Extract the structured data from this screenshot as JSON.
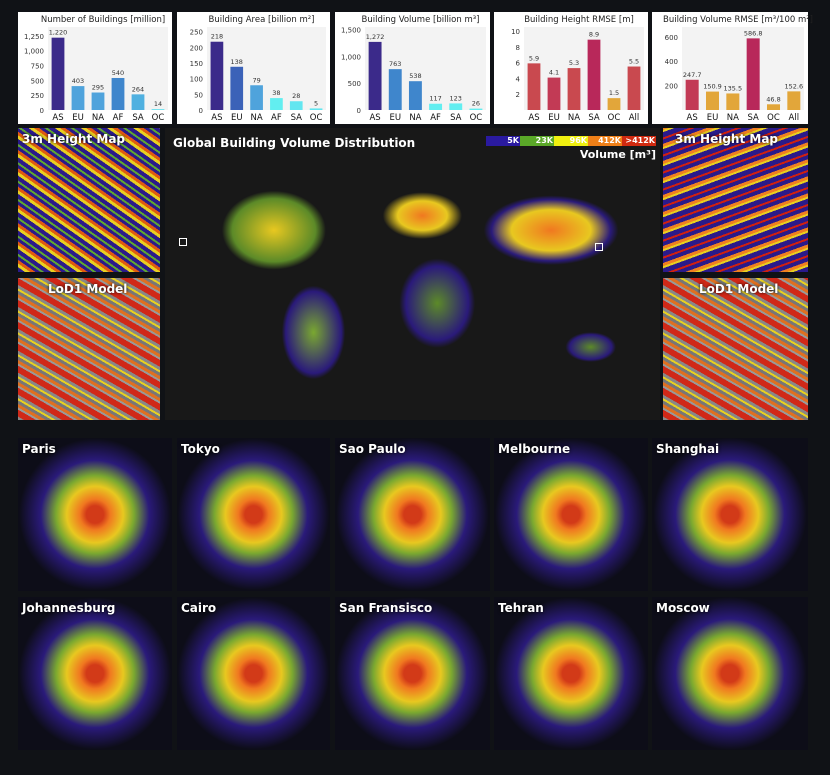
{
  "chart_data": [
    {
      "type": "bar",
      "title": "Number of Building​s [million]",
      "categories": [
        "AS",
        "EU",
        "NA",
        "AF",
        "SA",
        "OC"
      ],
      "values": [
        1220,
        403,
        295,
        540,
        264,
        14
      ],
      "labels": [
        "1,220",
        "403",
        "295",
        "540",
        "264",
        "14"
      ],
      "colors": [
        "#3b2a8a",
        "#4fa3dc",
        "#4fa3dc",
        "#3f86cc",
        "#4fb0e0",
        "#5ee0f0"
      ],
      "ylim": [
        0,
        1400
      ],
      "yticks": [
        0,
        250,
        500,
        750,
        1000,
        1250
      ],
      "yticklabels": [
        "0",
        "250",
        "500",
        "750",
        "1,000",
        "1,250"
      ]
    },
    {
      "type": "bar",
      "title": "Building Area [billion m²]",
      "categories": [
        "AS",
        "EU",
        "NA",
        "AF",
        "SA",
        "OC"
      ],
      "values": [
        218,
        138,
        79,
        38,
        28,
        5
      ],
      "labels": [
        "218",
        "138",
        "79",
        "38",
        "28",
        "5"
      ],
      "colors": [
        "#3b2a8a",
        "#3b62b8",
        "#4fa3dc",
        "#62eef0",
        "#62e6f0",
        "#62e6f0"
      ],
      "ylim": [
        0,
        265
      ],
      "yticks": [
        0,
        50,
        100,
        150,
        200,
        250
      ],
      "yticklabels": [
        "0",
        "50",
        "100",
        "150",
        "200",
        "250"
      ]
    },
    {
      "type": "bar",
      "title": "Building Volume [billion m³]",
      "categories": [
        "AS",
        "EU",
        "NA",
        "AF",
        "SA",
        "OC"
      ],
      "values": [
        1272,
        763,
        538,
        117,
        123,
        26
      ],
      "labels": [
        "1,272",
        "763",
        "538",
        "117",
        "123",
        "26"
      ],
      "colors": [
        "#3b2a8a",
        "#3f86cc",
        "#3f86cc",
        "#62eef0",
        "#62eef0",
        "#62eef0"
      ],
      "ylim": [
        0,
        1550
      ],
      "yticks": [
        0,
        500,
        1000,
        1500
      ],
      "yticklabels": [
        "0",
        "500",
        "1,000",
        "1,500"
      ]
    },
    {
      "type": "bar",
      "title": "Building Height RMSE [m]",
      "categories": [
        "AS",
        "EU",
        "NA",
        "SA",
        "OC",
        "All"
      ],
      "values": [
        5.9,
        4.1,
        5.3,
        8.9,
        1.5,
        5.5
      ],
      "labels": [
        "5.9",
        "4.1",
        "5.3",
        "8.9",
        "1.5",
        "5.5"
      ],
      "colors": [
        "#c9494f",
        "#c23a55",
        "#c9494f",
        "#b8285a",
        "#e2a63a",
        "#c9494f"
      ],
      "ylim": [
        0,
        10.5
      ],
      "yticks": [
        2,
        4,
        6,
        8,
        10
      ],
      "yticklabels": [
        "2",
        "4",
        "6",
        "8",
        "10"
      ]
    },
    {
      "type": "bar",
      "title": "Building Volume RMSE [m³/100 m²]",
      "categories": [
        "AS",
        "EU",
        "NA",
        "SA",
        "OC",
        "All"
      ],
      "values": [
        247.7,
        150.9,
        135.5,
        586.8,
        46.8,
        152.6
      ],
      "labels": [
        "247.7",
        "150.9",
        "135.5",
        "586.8",
        "46.8",
        "152.6"
      ],
      "colors": [
        "#c23a55",
        "#e2a63a",
        "#e2a63a",
        "#b8285a",
        "#e2a63a",
        "#e2a63a"
      ],
      "ylim": [
        0,
        680
      ],
      "yticks": [
        200,
        400,
        600
      ],
      "yticklabels": [
        "200",
        "400",
        "600"
      ]
    }
  ],
  "map": {
    "title": "Global Building Volume Distribution",
    "legend_title": "Volume [m³]",
    "legend": [
      {
        "label": "5K",
        "color": "#2a1aa0"
      },
      {
        "label": "23K",
        "color": "#5aa828"
      },
      {
        "label": "96K",
        "color": "#f0f010"
      },
      {
        "label": "412K",
        "color": "#f08018"
      },
      {
        "label": ">412K",
        "color": "#d02a10"
      }
    ]
  },
  "insets": {
    "left_top": "3m Height Map",
    "left_bottom": "LoD1 Model",
    "right_top": "3m Height Map",
    "right_bottom": "LoD1 Model"
  },
  "cities": [
    "Paris",
    "Tokyo",
    "Sao Paulo",
    "Melbourne",
    "Shanghai",
    "Johannesburg",
    "Cairo",
    "San Fransisco",
    "Tehran",
    "Moscow"
  ]
}
